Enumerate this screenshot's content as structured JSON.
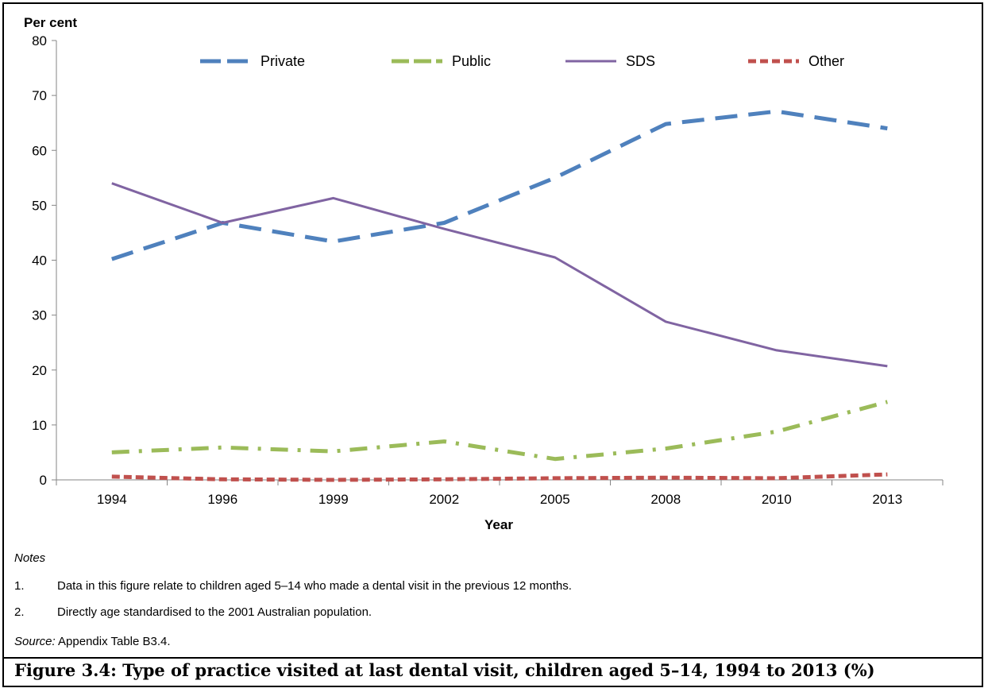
{
  "chart_data": {
    "type": "line",
    "ylabel": "Per cent",
    "xlabel": "Year",
    "categories": [
      "1994",
      "1996",
      "1999",
      "2002",
      "2005",
      "2008",
      "2010",
      "2013"
    ],
    "ylim": [
      0,
      80
    ],
    "yticks": [
      0,
      10,
      20,
      30,
      40,
      50,
      60,
      70,
      80
    ],
    "legend_position": "top",
    "series": [
      {
        "name": "Private",
        "values": [
          40.2,
          46.8,
          43.4,
          46.8,
          55.0,
          64.8,
          67.1,
          64.0
        ],
        "color": "#4F81BD",
        "style": "long-dash"
      },
      {
        "name": "Public",
        "values": [
          5.0,
          5.9,
          5.2,
          7.0,
          3.8,
          5.7,
          8.8,
          14.2
        ],
        "color": "#9BBB59",
        "style": "dash-dot"
      },
      {
        "name": "SDS",
        "values": [
          54.0,
          46.8,
          51.3,
          45.7,
          40.5,
          28.8,
          23.6,
          20.7
        ],
        "color": "#8064A2",
        "style": "solid"
      },
      {
        "name": "Other",
        "values": [
          0.6,
          0.1,
          0.0,
          0.1,
          0.3,
          0.4,
          0.3,
          1.0
        ],
        "color": "#C0504D",
        "style": "dotted"
      }
    ]
  },
  "notes": {
    "title": "Notes",
    "items": [
      {
        "num": "1.",
        "text": "Data in this figure relate to children aged 5–14 who made a dental visit in the previous 12 months."
      },
      {
        "num": "2.",
        "text": "Directly age standardised to the 2001 Australian population."
      }
    ]
  },
  "source": {
    "label": "Source:",
    "text": " Appendix Table B3.4."
  },
  "caption": "Figure 3.4: Type of practice visited at last dental visit, children aged 5–14, 1994 to 2013 (%)"
}
